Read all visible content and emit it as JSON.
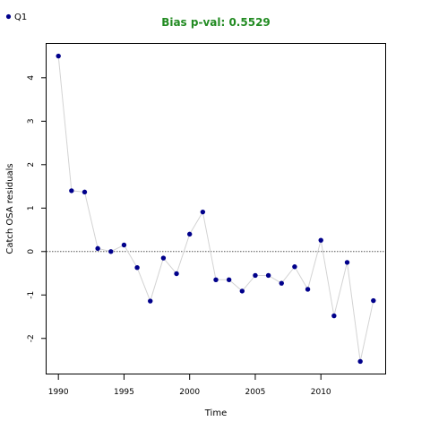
{
  "chart_data": {
    "type": "scatter",
    "title": "Bias p-val: 0.5529",
    "title_color": "#228B22",
    "xlabel": "Time",
    "ylabel": "Catch OSA residuals",
    "xlim": [
      1989.1,
      2014.9
    ],
    "ylim": [
      -2.83,
      4.78
    ],
    "xticks": [
      1990,
      1995,
      2000,
      2005,
      2010
    ],
    "yticks": [
      -2,
      -1,
      0,
      1,
      2,
      3,
      4
    ],
    "reference_line": 0,
    "connector_color": "#d3d3d3",
    "point_color": "#00008B",
    "grid": false,
    "legend_position": "top-left",
    "series": [
      {
        "name": "Q1",
        "color": "#00008B",
        "x": [
          1990,
          1991,
          1992,
          1993,
          1994,
          1995,
          1996,
          1997,
          1998,
          1999,
          2000,
          2001,
          2002,
          2003,
          2004,
          2005,
          2006,
          2007,
          2008,
          2009,
          2010,
          2011,
          2012,
          2013,
          2014
        ],
        "y": [
          4.5,
          1.4,
          1.37,
          0.07,
          0.0,
          0.15,
          -0.37,
          -1.14,
          -0.15,
          -0.51,
          0.4,
          0.91,
          -0.65,
          -0.65,
          -0.91,
          -0.55,
          -0.55,
          -0.73,
          -0.35,
          -0.87,
          0.26,
          -1.48,
          -0.25,
          -2.53,
          -1.13
        ]
      }
    ]
  }
}
